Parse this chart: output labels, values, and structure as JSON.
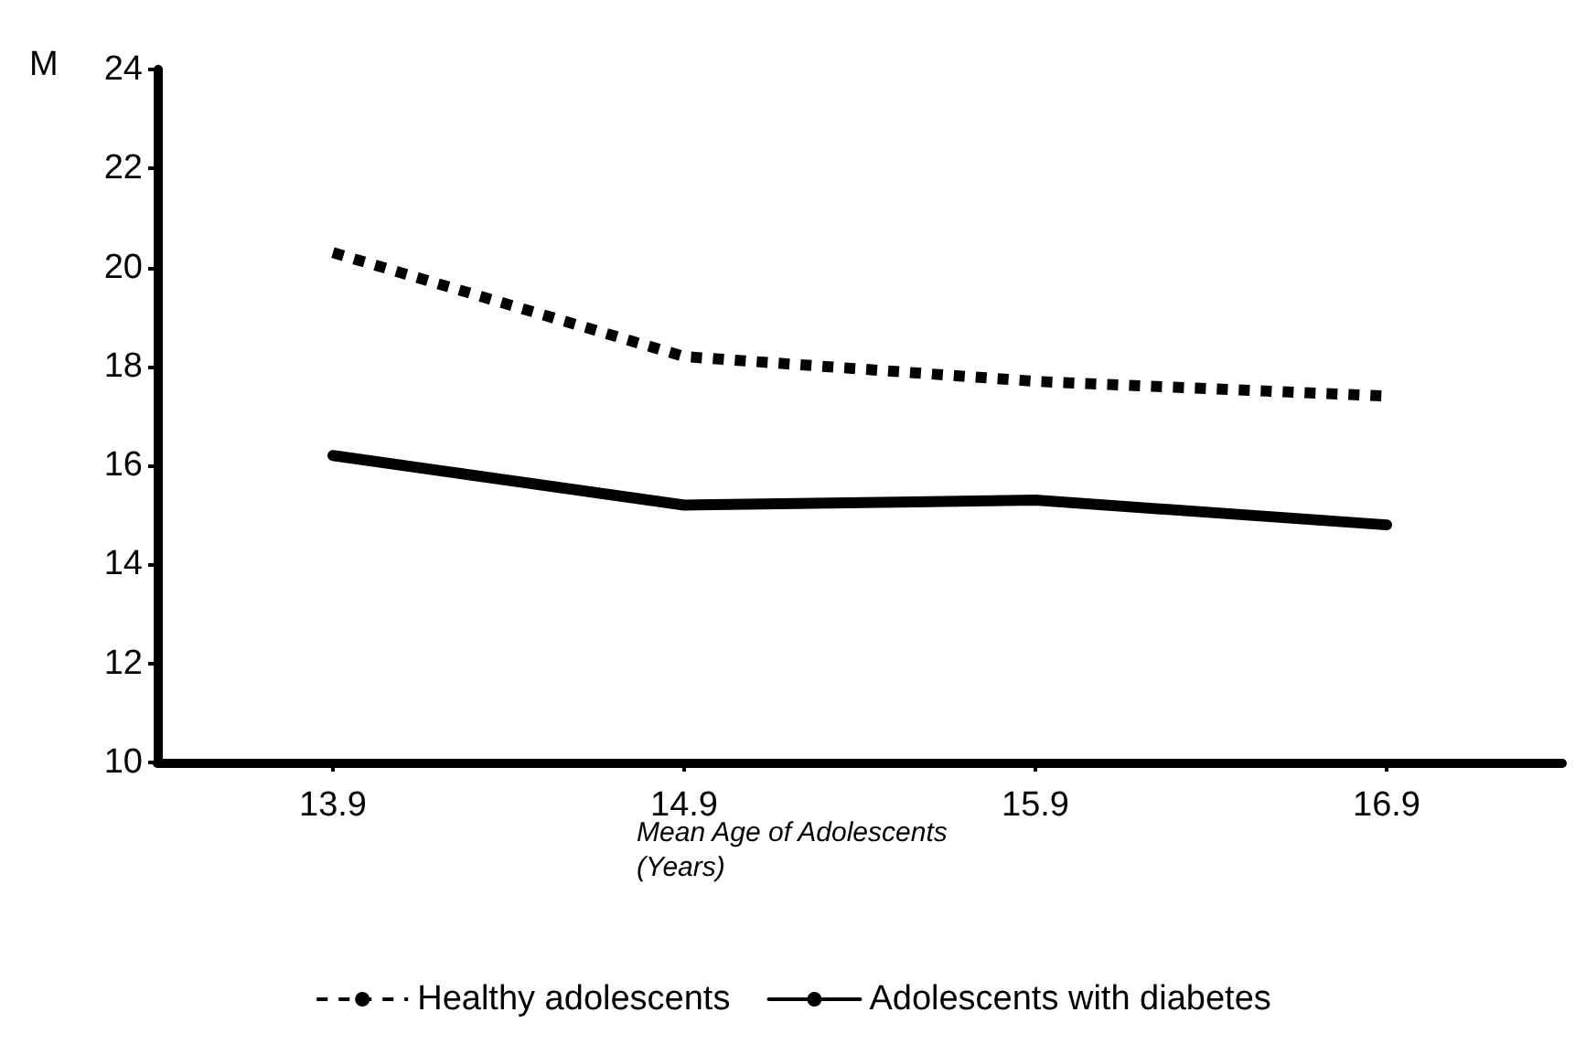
{
  "chart_data": {
    "type": "line",
    "ylabel": "M",
    "xlabel": "Mean Age of Adolescents\n(Years)",
    "categories": [
      "13.9",
      "14.9",
      "15.9",
      "16.9"
    ],
    "series": [
      {
        "name": "Healthy adolescents",
        "color": "#000000",
        "line_style": "dotted",
        "values": [
          20.3,
          18.2,
          17.7,
          17.4
        ]
      },
      {
        "name": "Adolescents with diabetes",
        "color": "#000000",
        "line_style": "solid",
        "values": [
          16.2,
          15.2,
          15.3,
          14.8
        ]
      }
    ],
    "ylim": [
      10,
      24
    ],
    "yticks": [
      10,
      12,
      14,
      16,
      18,
      20,
      22,
      24
    ],
    "grid": false,
    "legend": "bottom",
    "marker": "none"
  }
}
